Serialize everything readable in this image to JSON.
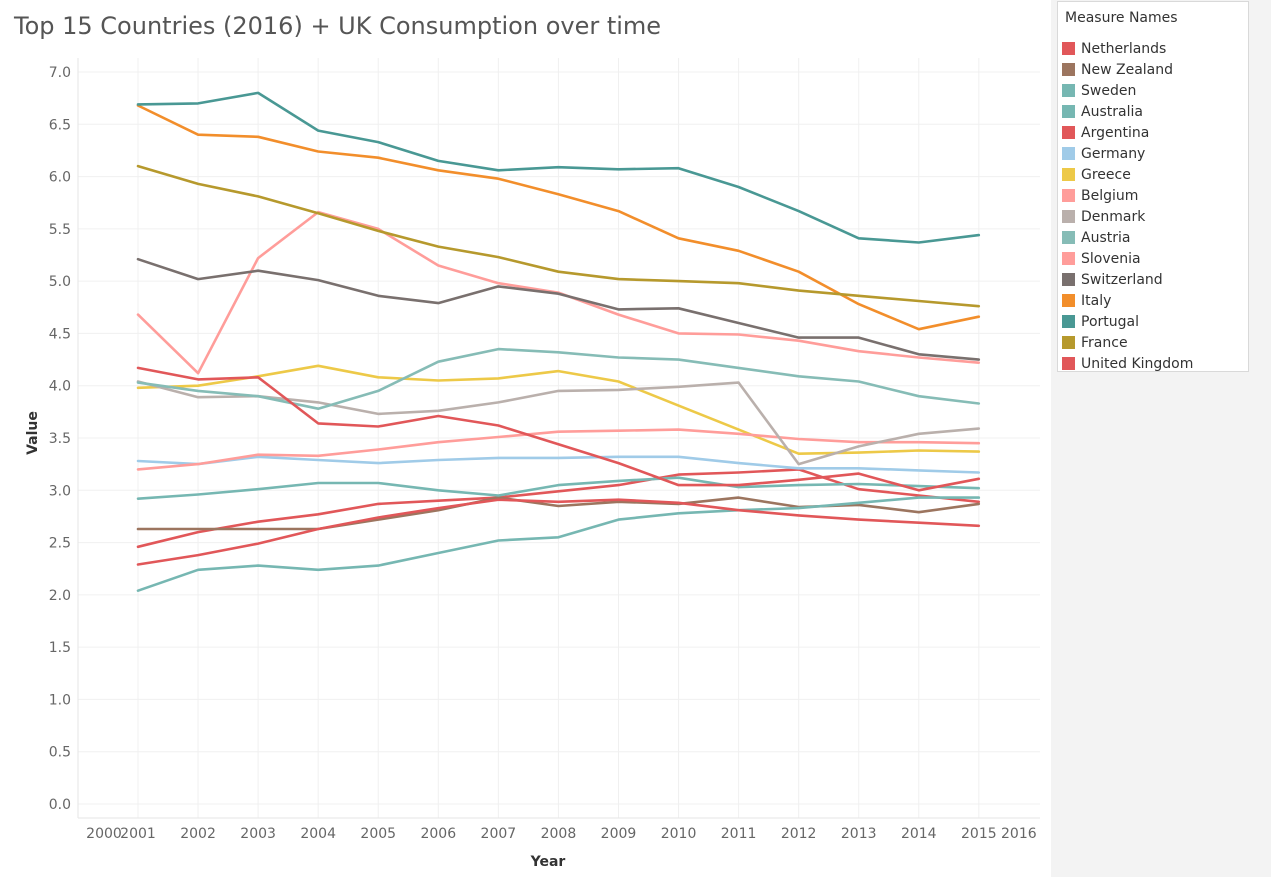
{
  "chart_data": {
    "type": "line",
    "title": "Top 15 Countries (2016) + UK Consumption over time",
    "xlabel": "Year",
    "ylabel": "Value",
    "x": [
      2001,
      2002,
      2003,
      2004,
      2005,
      2006,
      2007,
      2008,
      2009,
      2010,
      2011,
      2012,
      2013,
      2014,
      2015
    ],
    "x_ticks": [
      "2000",
      "2001",
      "2002",
      "2003",
      "2004",
      "2005",
      "2006",
      "2007",
      "2008",
      "2009",
      "2010",
      "2011",
      "2012",
      "2013",
      "2014",
      "2015",
      "2016"
    ],
    "xlim": [
      2000,
      2016
    ],
    "y_ticks": [
      "0.0",
      "0.5",
      "1.0",
      "1.5",
      "2.0",
      "2.5",
      "3.0",
      "3.5",
      "4.0",
      "4.5",
      "5.0",
      "5.5",
      "6.0",
      "6.5",
      "7.0"
    ],
    "ylim": [
      0,
      7
    ],
    "grid": true,
    "legend_title": "Measure Names",
    "legend_position": "right",
    "series": [
      {
        "name": "Netherlands",
        "color": "#e15759",
        "values": [
          2.46,
          2.6,
          2.7,
          2.77,
          2.87,
          2.9,
          2.93,
          2.99,
          3.05,
          3.15,
          3.17,
          3.2,
          3.01,
          2.95,
          2.89
        ]
      },
      {
        "name": "New Zealand",
        "color": "#9c755f",
        "values": [
          2.63,
          2.63,
          2.63,
          2.63,
          2.72,
          2.81,
          2.93,
          2.85,
          2.89,
          2.87,
          2.93,
          2.84,
          2.86,
          2.79,
          2.87
        ]
      },
      {
        "name": "Sweden",
        "color": "#76b7b2",
        "values": [
          2.04,
          2.24,
          2.28,
          2.24,
          2.28,
          2.4,
          2.52,
          2.55,
          2.72,
          2.78,
          2.81,
          2.83,
          2.88,
          2.93,
          2.93
        ]
      },
      {
        "name": "Australia",
        "color": "#76b7b2",
        "values": [
          2.92,
          2.96,
          3.01,
          3.07,
          3.07,
          3.0,
          2.95,
          3.05,
          3.09,
          3.12,
          3.03,
          3.05,
          3.06,
          3.04,
          3.02
        ]
      },
      {
        "name": "Argentina",
        "color": "#e15759",
        "values": [
          2.29,
          2.38,
          2.49,
          2.63,
          2.74,
          2.83,
          2.91,
          2.89,
          2.91,
          2.88,
          2.81,
          2.76,
          2.72,
          2.69,
          2.66
        ]
      },
      {
        "name": "Germany",
        "color": "#a0cbe8",
        "values": [
          3.28,
          3.25,
          3.32,
          3.29,
          3.26,
          3.29,
          3.31,
          3.31,
          3.32,
          3.32,
          3.26,
          3.21,
          3.21,
          3.19,
          3.17
        ]
      },
      {
        "name": "Greece",
        "color": "#edc948",
        "values": [
          3.98,
          4.0,
          4.09,
          4.19,
          4.08,
          4.05,
          4.07,
          4.14,
          4.04,
          3.81,
          3.58,
          3.35,
          3.36,
          3.38,
          3.37
        ]
      },
      {
        "name": "Belgium",
        "color": "#ff9d9a",
        "values": [
          3.2,
          3.25,
          3.34,
          3.33,
          3.39,
          3.46,
          3.51,
          3.56,
          3.57,
          3.58,
          3.54,
          3.49,
          3.46,
          3.46,
          3.45
        ]
      },
      {
        "name": "Denmark",
        "color": "#bab0ac",
        "values": [
          4.04,
          3.89,
          3.9,
          3.84,
          3.73,
          3.76,
          3.84,
          3.95,
          3.96,
          3.99,
          4.03,
          3.25,
          3.42,
          3.54,
          3.59
        ]
      },
      {
        "name": "Austria",
        "color": "#86bcb6",
        "values": [
          4.03,
          3.95,
          3.9,
          3.78,
          3.95,
          4.23,
          4.35,
          4.32,
          4.27,
          4.25,
          4.17,
          4.09,
          4.04,
          3.9,
          3.83
        ]
      },
      {
        "name": "Slovenia",
        "color": "#ff9d9a",
        "values": [
          4.68,
          4.12,
          5.22,
          5.66,
          5.5,
          5.15,
          4.98,
          4.89,
          4.68,
          4.5,
          4.49,
          4.43,
          4.33,
          4.27,
          4.22
        ]
      },
      {
        "name": "Switzerland",
        "color": "#79706e",
        "values": [
          5.21,
          5.02,
          5.1,
          5.01,
          4.86,
          4.79,
          4.95,
          4.88,
          4.73,
          4.74,
          4.6,
          4.46,
          4.46,
          4.3,
          4.25
        ]
      },
      {
        "name": "Italy",
        "color": "#f28e2b",
        "values": [
          6.68,
          6.4,
          6.38,
          6.24,
          6.18,
          6.06,
          5.98,
          5.83,
          5.67,
          5.41,
          5.29,
          5.09,
          4.78,
          4.54,
          4.66
        ]
      },
      {
        "name": "Portugal",
        "color": "#499894",
        "values": [
          6.69,
          6.7,
          6.8,
          6.44,
          6.33,
          6.15,
          6.06,
          6.09,
          6.07,
          6.08,
          5.9,
          5.67,
          5.41,
          5.37,
          5.44
        ]
      },
      {
        "name": "France",
        "color": "#b6992d",
        "values": [
          6.1,
          5.93,
          5.81,
          5.65,
          5.48,
          5.33,
          5.23,
          5.09,
          5.02,
          5.0,
          4.98,
          4.91,
          4.86,
          4.81,
          4.76
        ]
      },
      {
        "name": "United Kingdom",
        "color": "#e15759",
        "values": [
          4.17,
          4.06,
          4.08,
          3.64,
          3.61,
          3.71,
          3.62,
          3.44,
          3.26,
          3.05,
          3.05,
          3.1,
          3.16,
          3.0,
          3.11
        ]
      }
    ]
  }
}
